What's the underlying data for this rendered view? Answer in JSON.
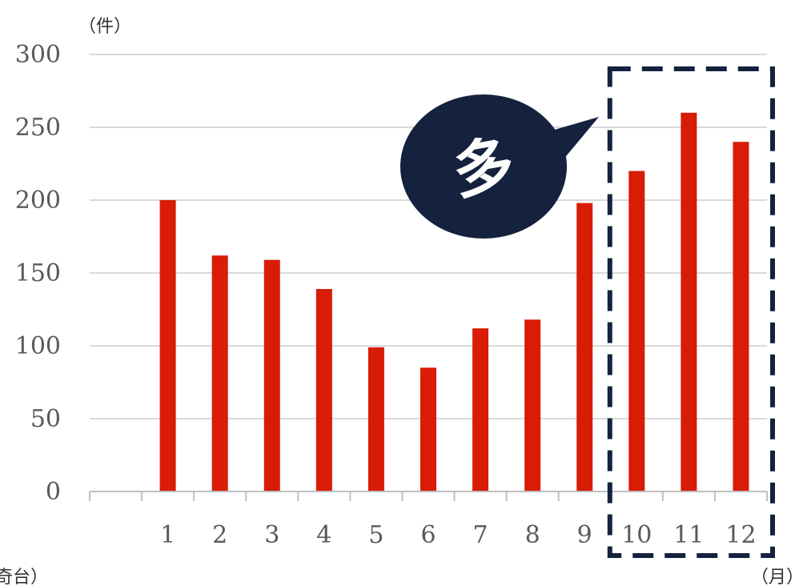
{
  "chart_data": {
    "type": "bar",
    "categories": [
      "",
      "1",
      "2",
      "3",
      "4",
      "5",
      "6",
      "7",
      "8",
      "9",
      "10",
      "11",
      "12"
    ],
    "values": [
      null,
      200,
      162,
      159,
      139,
      99,
      85,
      112,
      118,
      198,
      220,
      260,
      240
    ],
    "yticks": [
      0,
      50,
      100,
      150,
      200,
      250,
      300
    ],
    "ylim": [
      0,
      300
    ],
    "y_unit": "（件）",
    "x_unit": "（月）",
    "left_fragment": "奇台）",
    "bar_color": "#d81c06",
    "grid": true,
    "highlight": {
      "categories": [
        "10",
        "11",
        "12"
      ],
      "label": "多",
      "box_color": "#15223d",
      "bubble_color": "#15223d"
    }
  }
}
